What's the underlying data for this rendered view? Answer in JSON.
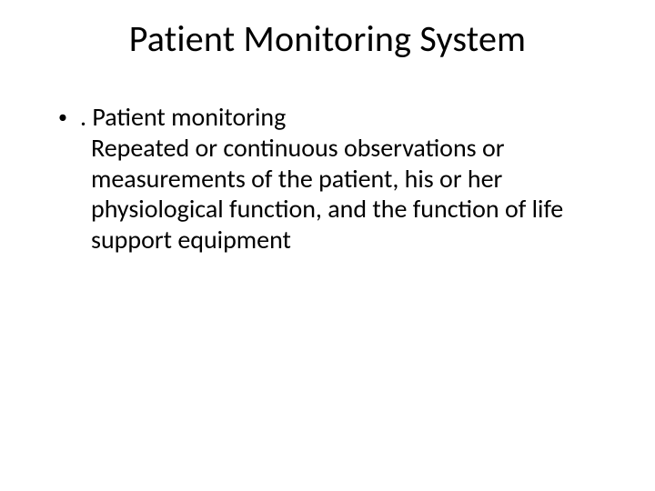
{
  "slide": {
    "title": "Patient Monitoring System",
    "bullet": {
      "marker": "•",
      "lead": ". Patient monitoring"
    },
    "paragraph": "Repeated or continuous observations or measurements of the patient, his or her physiological function, and the function of life support equipment"
  },
  "style": {
    "background_color": "#ffffff",
    "text_color": "#000000",
    "title_fontsize": 40,
    "body_fontsize": 28,
    "font_family": "Calibri"
  }
}
